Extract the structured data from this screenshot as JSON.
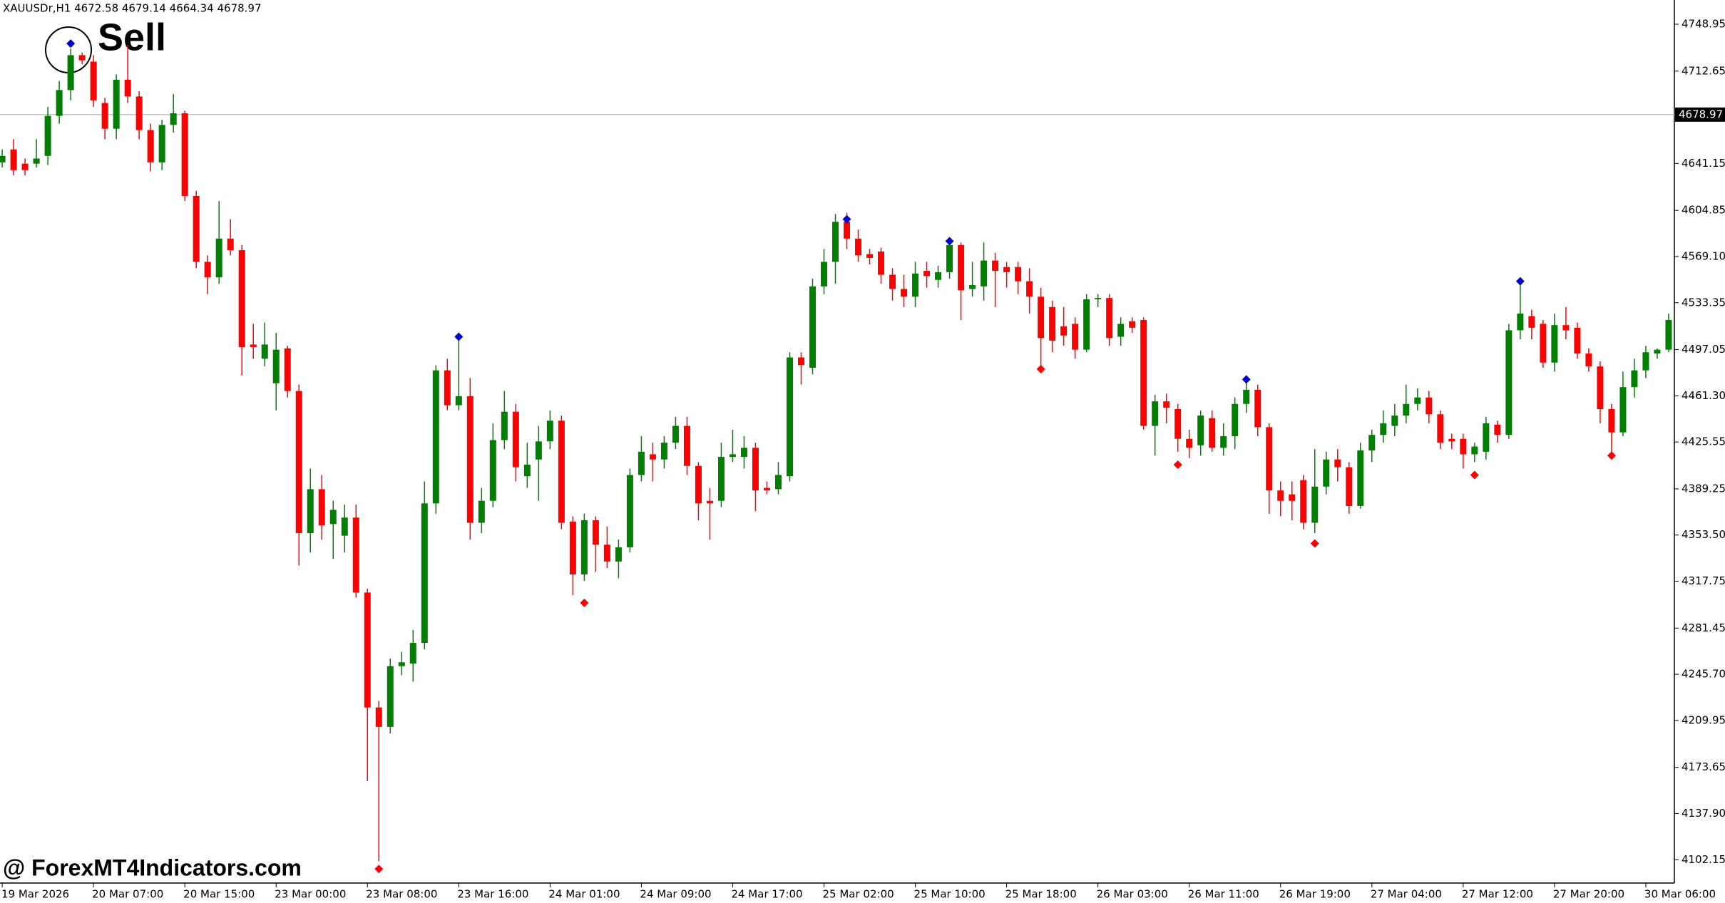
{
  "chart_data": {
    "type": "candlestick",
    "header": "XAUUSDr,H1  4672.58 4679.14 4664.34 4678.97",
    "annotation": "Sell",
    "watermark": "@ ForexMT4Indicators.com",
    "up_color": "#008000",
    "down_color": "#ff0000",
    "current_price": 4678.97,
    "ylim": [
      4084.1,
      4767.7
    ],
    "yticks": [
      4748.95,
      4712.65,
      4641.15,
      4604.85,
      {
        "value": 4569.1,
        "label": "4569.10"
      },
      4533.35,
      4497.05,
      {
        "value": 4461.3,
        "label": "4461.30"
      },
      4425.55,
      4389.25,
      {
        "value": 4353.5,
        "label": "4353.50"
      },
      4317.75,
      4281.45,
      {
        "value": 4245.7,
        "label": "4245.70"
      },
      4209.95,
      4173.65,
      {
        "value": 4137.9,
        "label": "4137.90"
      },
      4102.15
    ],
    "categories": [
      "19 Mar 2026",
      null,
      null,
      null,
      null,
      null,
      null,
      null,
      "20 Mar 07:00",
      null,
      null,
      null,
      null,
      null,
      null,
      null,
      "20 Mar 15:00",
      null,
      null,
      null,
      null,
      null,
      null,
      null,
      "23 Mar 00:00",
      null,
      null,
      null,
      null,
      null,
      null,
      null,
      "23 Mar 08:00",
      null,
      null,
      null,
      null,
      null,
      null,
      null,
      "23 Mar 16:00",
      null,
      null,
      null,
      null,
      null,
      null,
      null,
      "24 Mar 01:00",
      null,
      null,
      null,
      null,
      null,
      null,
      null,
      "24 Mar 09:00",
      null,
      null,
      null,
      null,
      null,
      null,
      null,
      "24 Mar 17:00",
      null,
      null,
      null,
      null,
      null,
      null,
      null,
      "25 Mar 02:00",
      null,
      null,
      null,
      null,
      null,
      null,
      null,
      "25 Mar 10:00",
      null,
      null,
      null,
      null,
      null,
      null,
      null,
      "25 Mar 18:00",
      null,
      null,
      null,
      null,
      null,
      null,
      null,
      "26 Mar 03:00",
      null,
      null,
      null,
      null,
      null,
      null,
      null,
      "26 Mar 11:00",
      null,
      null,
      null,
      null,
      null,
      null,
      null,
      "26 Mar 19:00",
      null,
      null,
      null,
      null,
      null,
      null,
      null,
      "27 Mar 04:00",
      null,
      null,
      null,
      null,
      null,
      null,
      null,
      "27 Mar 12:00",
      null,
      null,
      null,
      null,
      null,
      null,
      null,
      "27 Mar 20:00",
      null,
      null,
      null,
      null,
      null,
      null,
      null,
      "30 Mar 06:00",
      null,
      null
    ],
    "open": [
      4642,
      4652,
      4641,
      4641,
      4647,
      4678,
      4698,
      4725,
      4720,
      4688,
      4668,
      4706,
      4693,
      4667,
      4642,
      4671,
      4680,
      4616,
      4565,
      4553,
      4583,
      4574,
      4501,
      4490,
      4471,
      4498,
      4465,
      4355,
      4389,
      4362,
      4353,
      4367,
      4309,
      4220,
      4205,
      4252,
      4254,
      4270,
      4378,
      4481,
      4454,
      4461,
      4363,
      4380,
      4427,
      4449,
      4399,
      4412,
      4426,
      4442,
      4364,
      4323,
      4365,
      4346,
      4333,
      4344,
      4400,
      4416,
      4412,
      4425,
      4438,
      4407,
      4380,
      4380,
      4414,
      4414,
      4421,
      4390,
      4389,
      4399,
      4491,
      4483,
      4546,
      4565,
      4596,
      4583,
      4571,
      4573,
      4555,
      4544,
      4538,
      4558,
      4551,
      4557,
      4578,
      4544,
      4546,
      4566,
      4561,
      4561,
      4550,
      4538,
      4530,
      4515,
      4517,
      4497,
      4536,
      4537,
      4507,
      4519,
      4520,
      4438,
      4457,
      4451,
      4428,
      4423,
      4444,
      4421,
      4430,
      4455,
      4466,
      4437,
      4388,
      4385,
      4396,
      4363,
      4391,
      4412,
      4406,
      4376,
      4419,
      4431,
      4438,
      4446,
      4455,
      4460,
      4447,
      4428,
      4428,
      4416,
      4418,
      4439,
      4431,
      4512,
      4523,
      4517,
      4487,
      4516,
      4514,
      4494,
      4484,
      4451,
      4433,
      4468,
      4481,
      4494,
      4497
    ],
    "high": [
      4652,
      4660,
      4645,
      4660,
      4685,
      4705,
      4730,
      4727,
      4725,
      4692,
      4710,
      4733,
      4697,
      4672,
      4675,
      4695,
      4682,
      4620,
      4570,
      4612,
      4598,
      4578,
      4517,
      4518,
      4510,
      4500,
      4470,
      4405,
      4400,
      4380,
      4377,
      4377,
      4312,
      4225,
      4258,
      4263,
      4280,
      4395,
      4485,
      4490,
      4506,
      4475,
      4390,
      4440,
      4465,
      4455,
      4425,
      4438,
      4450,
      4446,
      4368,
      4370,
      4368,
      4360,
      4350,
      4405,
      4430,
      4425,
      4430,
      4445,
      4445,
      4410,
      4390,
      4425,
      4435,
      4430,
      4425,
      4395,
      4410,
      4495,
      4495,
      4552,
      4575,
      4602,
      4603,
      4590,
      4575,
      4576,
      4560,
      4555,
      4565,
      4565,
      4562,
      4582,
      4580,
      4565,
      4580,
      4572,
      4565,
      4565,
      4560,
      4545,
      4535,
      4530,
      4522,
      4540,
      4540,
      4540,
      4522,
      4522,
      4522,
      4462,
      4463,
      4455,
      4435,
      4450,
      4450,
      4440,
      4460,
      4473,
      4470,
      4440,
      4395,
      4395,
      4400,
      4420,
      4418,
      4420,
      4410,
      4425,
      4435,
      4450,
      4455,
      4470,
      4467,
      4465,
      4450,
      4432,
      4432,
      4425,
      4445,
      4442,
      4517,
      4547,
      4528,
      4520,
      4525,
      4530,
      4518,
      4498,
      4488,
      4455,
      4480,
      4490,
      4500,
      4498,
      4525
    ],
    "low": [
      4638,
      4632,
      4632,
      4638,
      4640,
      4672,
      4690,
      4718,
      4685,
      4660,
      4660,
      4688,
      4660,
      4635,
      4636,
      4665,
      4612,
      4560,
      4540,
      4548,
      4570,
      4477,
      4490,
      4484,
      4450,
      4460,
      4330,
      4340,
      4350,
      4335,
      4340,
      4305,
      4163,
      4101,
      4200,
      4245,
      4240,
      4265,
      4370,
      4450,
      4450,
      4350,
      4355,
      4375,
      4420,
      4395,
      4390,
      4380,
      4420,
      4358,
      4307,
      4318,
      4325,
      4328,
      4320,
      4340,
      4395,
      4395,
      4405,
      4420,
      4400,
      4365,
      4350,
      4375,
      4410,
      4405,
      4372,
      4385,
      4385,
      4395,
      4470,
      4478,
      4540,
      4548,
      4575,
      4565,
      4563,
      4548,
      4535,
      4530,
      4530,
      4545,
      4545,
      4552,
      4520,
      4538,
      4535,
      4530,
      4545,
      4540,
      4525,
      4483,
      4495,
      4500,
      4490,
      4495,
      4530,
      4500,
      4500,
      4510,
      4435,
      4415,
      4440,
      4418,
      4413,
      4415,
      4418,
      4415,
      4420,
      4448,
      4430,
      4370,
      4368,
      4365,
      4358,
      4355,
      4385,
      4395,
      4370,
      4374,
      4410,
      4425,
      4430,
      4440,
      4450,
      4440,
      4420,
      4420,
      4405,
      4410,
      4412,
      4425,
      4428,
      4505,
      4505,
      4483,
      4480,
      4505,
      4490,
      4480,
      4440,
      4418,
      4430,
      4460,
      4475,
      4490,
      4495
    ],
    "close": [
      4647,
      4636,
      4636,
      4645,
      4678,
      4698,
      4725,
      4721,
      4690,
      4668,
      4706,
      4693,
      4667,
      4642,
      4671,
      4680,
      4616,
      4565,
      4553,
      4583,
      4574,
      4499,
      4499,
      4501,
      4497,
      4465,
      4355,
      4389,
      4361,
      4373,
      4367,
      4309,
      4220,
      4205,
      4252,
      4255,
      4270,
      4378,
      4481,
      4454,
      4461,
      4363,
      4380,
      4427,
      4449,
      4406,
      4408,
      4426,
      4442,
      4363,
      4323,
      4365,
      4346,
      4333,
      4344,
      4400,
      4418,
      4412,
      4425,
      4438,
      4407,
      4378,
      4378,
      4414,
      4416,
      4421,
      4388,
      4388,
      4400,
      4491,
      4485,
      4546,
      4565,
      4596,
      4583,
      4570,
      4568,
      4555,
      4544,
      4538,
      4556,
      4554,
      4557,
      4578,
      4543,
      4547,
      4566,
      4558,
      4557,
      4550,
      4538,
      4506,
      4504,
      4508,
      4497,
      4536,
      4537,
      4506,
      4517,
      4514,
      4438,
      4457,
      4452,
      4428,
      4421,
      4446,
      4421,
      4430,
      4455,
      4466,
      4437,
      4388,
      4380,
      4380,
      4363,
      4391,
      4412,
      4406,
      4376,
      4419,
      4431,
      4440,
      4446,
      4455,
      4460,
      4447,
      4425,
      4426,
      4416,
      4422,
      4440,
      4431,
      4512,
      4525,
      4514,
      4487,
      4516,
      4512,
      4494,
      4484,
      4451,
      4433,
      4468,
      4481,
      4495,
      4497,
      4520
    ],
    "sell_signals": {
      "color": "#0000cc",
      "points": [
        {
          "x": 6,
          "value": 4734
        },
        {
          "x": 40,
          "value": 4507
        },
        {
          "x": 74,
          "value": 4598
        },
        {
          "x": 83,
          "value": 4581
        },
        {
          "x": 109,
          "value": 4474
        },
        {
          "x": 133,
          "value": 4550
        }
      ]
    },
    "buy_signals": {
      "color": "#ff0000",
      "points": [
        {
          "x": 33,
          "value": 4095
        },
        {
          "x": 51,
          "value": 4301
        },
        {
          "x": 91,
          "value": 4482
        },
        {
          "x": 103,
          "value": 4408
        },
        {
          "x": 115,
          "value": 4347
        },
        {
          "x": 129,
          "value": 4400
        },
        {
          "x": 141,
          "value": 4415
        }
      ]
    }
  }
}
